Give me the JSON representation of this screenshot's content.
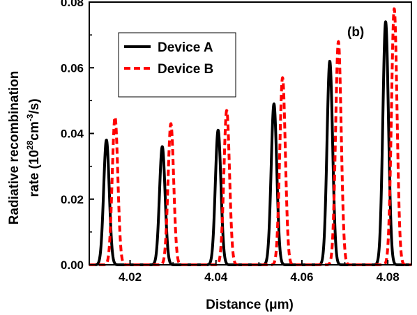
{
  "chart_data": {
    "type": "line",
    "panel_label": "(b)",
    "xlabel": "Distance (μm)",
    "ylabel_line1": "Radiative recombination",
    "ylabel_line2_prefix": "rate (10",
    "ylabel_line2_sup1": "28",
    "ylabel_line2_mid": "cm",
    "ylabel_line2_sup2": "-3",
    "ylabel_line2_suffix": "/s)",
    "xlim": [
      4.0105,
      4.0855
    ],
    "ylim": [
      0,
      0.08
    ],
    "xticks": [
      4.02,
      4.04,
      4.06,
      4.08
    ],
    "xtick_labels": [
      "4.02",
      "4.04",
      "4.06",
      "4.08"
    ],
    "yticks": [
      0,
      0.02,
      0.04,
      0.06,
      0.08
    ],
    "ytick_labels": [
      "0.00",
      "0.02",
      "0.04",
      "0.06",
      "0.08"
    ],
    "legend_position": "top-left",
    "series": [
      {
        "name": "Device A",
        "color": "#000000",
        "dash": "solid",
        "peaks": [
          {
            "x": 4.0145,
            "y": 0.038
          },
          {
            "x": 4.0275,
            "y": 0.036
          },
          {
            "x": 4.0405,
            "y": 0.041
          },
          {
            "x": 4.0535,
            "y": 0.049
          },
          {
            "x": 4.0665,
            "y": 0.062
          },
          {
            "x": 4.0795,
            "y": 0.074
          }
        ]
      },
      {
        "name": "Device B",
        "color": "#ff0000",
        "dash": "dashed",
        "peaks": [
          {
            "x": 4.0165,
            "y": 0.045
          },
          {
            "x": 4.0295,
            "y": 0.043
          },
          {
            "x": 4.0425,
            "y": 0.047
          },
          {
            "x": 4.0555,
            "y": 0.057
          },
          {
            "x": 4.0685,
            "y": 0.068
          },
          {
            "x": 4.0815,
            "y": 0.078
          }
        ]
      }
    ]
  }
}
